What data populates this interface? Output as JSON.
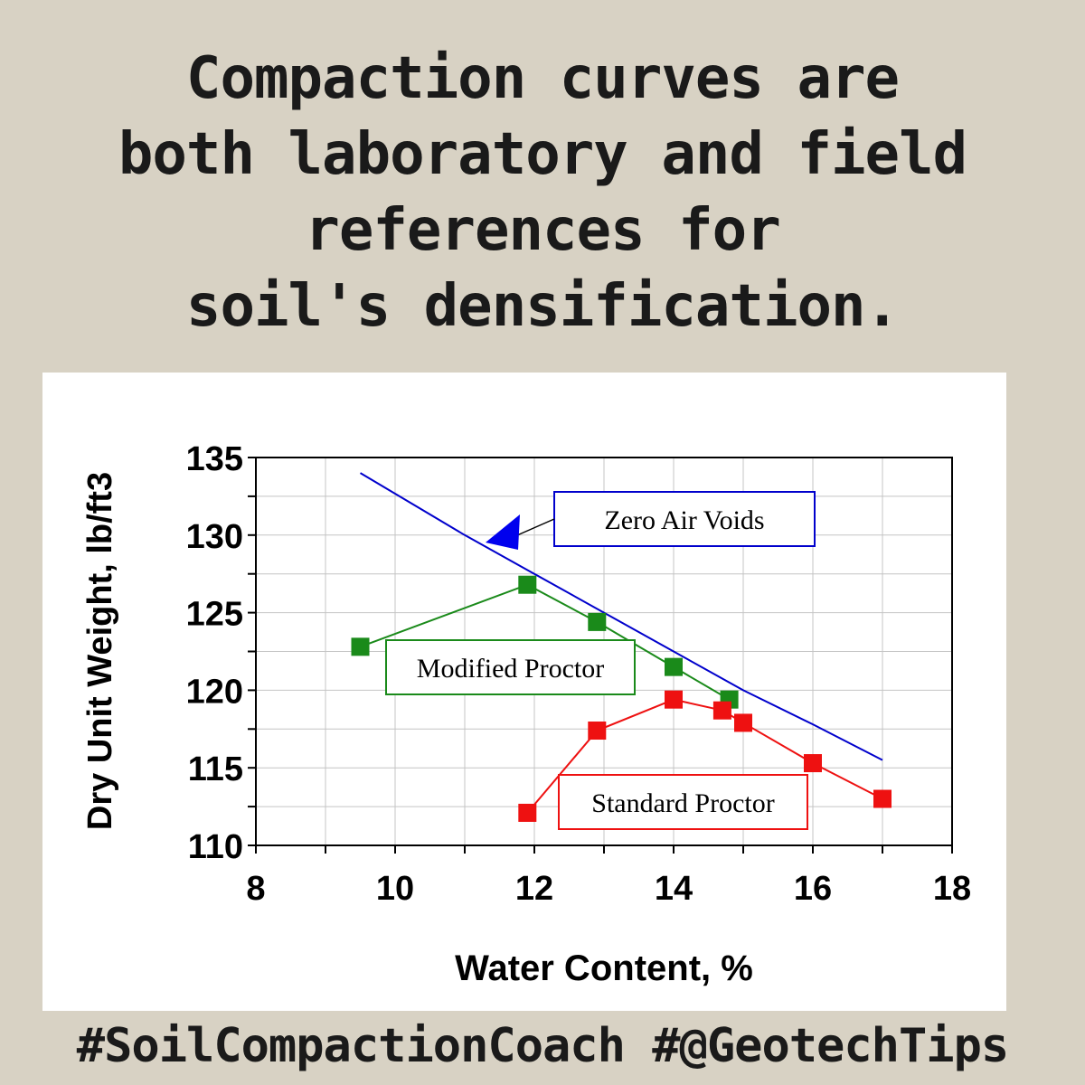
{
  "headline": {
    "line1": "Compaction curves are",
    "line2": "both laboratory and field",
    "line3": "references for",
    "line4": "soil's densification."
  },
  "hashtags": "#SoilCompactionCoach #@GeotechTips",
  "chart_data": {
    "type": "line",
    "xlabel": "Water Content, %",
    "ylabel": "Dry Unit Weight, lb/ft3",
    "xlim": [
      8,
      18
    ],
    "ylim": [
      110,
      135
    ],
    "xticks": [
      8,
      10,
      12,
      14,
      16,
      18
    ],
    "yticks": [
      110,
      115,
      120,
      125,
      130,
      135
    ],
    "grid": true,
    "series": [
      {
        "name": "Zero Air Voids",
        "color": "#0000cc",
        "marker": "none",
        "x": [
          9.5,
          11,
          12,
          13,
          14,
          15,
          16,
          17
        ],
        "y": [
          134.0,
          130.0,
          127.5,
          125.0,
          122.5,
          120.0,
          117.8,
          115.5
        ]
      },
      {
        "name": "Modified Proctor",
        "color": "#1a8a1a",
        "marker": "square",
        "x": [
          9.5,
          11.9,
          12.9,
          14.0,
          14.8
        ],
        "y": [
          122.8,
          126.8,
          124.4,
          121.5,
          119.4
        ]
      },
      {
        "name": "Standard Proctor",
        "color": "#ee1111",
        "marker": "square",
        "x": [
          11.9,
          12.9,
          14.0,
          14.7,
          15.0,
          16.0,
          17.0
        ],
        "y": [
          112.1,
          117.4,
          119.4,
          118.7,
          117.9,
          115.3,
          113.0
        ]
      }
    ],
    "annotations": [
      {
        "text": "Zero Air Voids",
        "series": "Zero Air Voids",
        "box_color": "#0000cc",
        "arrow": true
      },
      {
        "text": "Modified Proctor",
        "series": "Modified Proctor",
        "box_color": "#1a8a1a"
      },
      {
        "text": "Standard Proctor",
        "series": "Standard Proctor",
        "box_color": "#ee1111"
      }
    ]
  }
}
